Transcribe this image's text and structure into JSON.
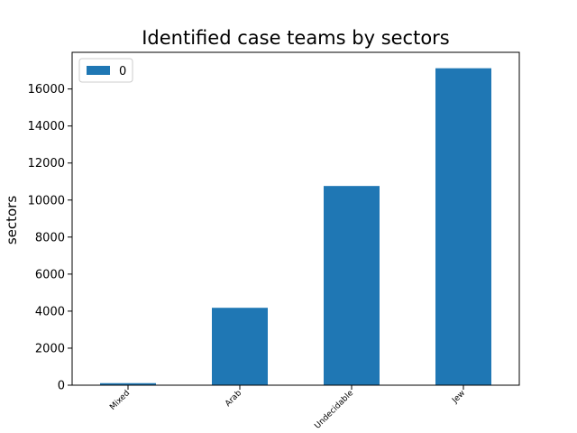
{
  "chart_data": {
    "type": "bar",
    "title": "Identified case teams by sectors",
    "xlabel": "",
    "ylabel": "sectors",
    "categories": [
      "Mixed",
      "Arab",
      "Undecidable",
      "Jew"
    ],
    "series": [
      {
        "name": "0",
        "values": [
          110,
          4180,
          10760,
          17120
        ],
        "color": "#1f77b4"
      }
    ],
    "yticks": [
      0,
      2000,
      4000,
      6000,
      8000,
      10000,
      12000,
      14000,
      16000
    ],
    "ylim": [
      0,
      17980
    ],
    "grid": false,
    "legend": {
      "position": "top-left",
      "entries": [
        "0"
      ]
    }
  }
}
